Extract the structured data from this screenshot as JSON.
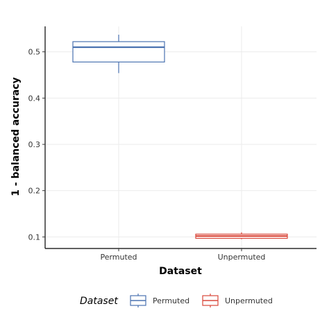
{
  "chart_data": {
    "type": "boxplot",
    "xlabel": "Dataset",
    "ylabel": "1 - balanced accuracy",
    "ylim": [
      0.075,
      0.555
    ],
    "yticks": [
      0.1,
      0.2,
      0.3,
      0.4,
      0.5
    ],
    "ytick_labels": [
      "0.1",
      "0.2",
      "0.3",
      "0.4",
      "0.5"
    ],
    "categories": [
      "Permuted",
      "Unpermuted"
    ],
    "grid": true,
    "legend": {
      "title": "Dataset",
      "placement": "bottom"
    },
    "series": [
      {
        "name": "Permuted",
        "color": "#4a72b0",
        "min": 0.454,
        "q1": 0.478,
        "median": 0.51,
        "q3": 0.522,
        "max": 0.537
      },
      {
        "name": "Unpermuted",
        "color": "#d9473a",
        "min": 0.095,
        "q1": 0.097,
        "median": 0.102,
        "q3": 0.106,
        "max": 0.11
      }
    ]
  }
}
